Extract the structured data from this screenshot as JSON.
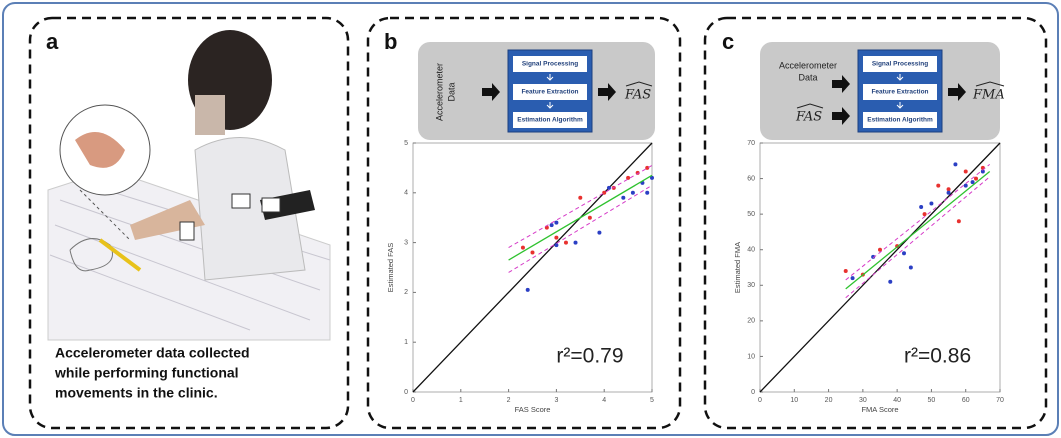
{
  "panels": [
    {
      "label": "a",
      "caption": [
        "Accelerometer data collected",
        "while performing functional",
        "movements in the clinic."
      ]
    },
    {
      "label": "b",
      "diagram": {
        "input": [
          "Accelerometer",
          "Data"
        ],
        "steps": [
          "Signal Processing",
          "Feature Extraction",
          "Estimation Algorithm"
        ],
        "output": "FAS"
      }
    },
    {
      "label": "c",
      "diagram": {
        "input": [
          "Accelerometer",
          "Data"
        ],
        "input2": "FAS",
        "steps": [
          "Signal Processing",
          "Feature Extraction",
          "Estimation Algorithm"
        ],
        "output": "FMA"
      }
    }
  ],
  "chart_data": [
    {
      "type": "scatter",
      "x_label": "FAS Score",
      "y_label": "Estimated FAS",
      "annotation": "r²=0.79",
      "xlim": [
        0,
        5
      ],
      "ylim": [
        0,
        5
      ],
      "xticks": [
        0,
        1,
        2,
        3,
        4,
        5
      ],
      "yticks": [
        0,
        1,
        2,
        3,
        4,
        5
      ],
      "series": [
        {
          "style": "line",
          "color": "#111111",
          "x": [
            0,
            5
          ],
          "values": [
            0,
            5
          ]
        },
        {
          "style": "points",
          "color": "#e8312f",
          "x": [
            2.3,
            2.5,
            2.8,
            3,
            3.2,
            3.5,
            3.7,
            4,
            4.2,
            4.5,
            4.7,
            4.9
          ],
          "values": [
            2.9,
            2.8,
            3.3,
            3.1,
            3.0,
            3.9,
            3.5,
            4.0,
            4.1,
            4.3,
            4.4,
            4.5
          ]
        },
        {
          "style": "points",
          "color": "#2b3fc4",
          "x": [
            2.4,
            2.9,
            3,
            3,
            3.4,
            3.9,
            4.1,
            4.4,
            4.6,
            4.8,
            4.9,
            5
          ],
          "values": [
            2.05,
            3.35,
            3.4,
            2.95,
            3.0,
            3.2,
            4.1,
            3.9,
            4.0,
            4.2,
            4.0,
            4.3
          ]
        },
        {
          "style": "dashed",
          "color": "#d63cc8",
          "x": [
            2,
            5
          ],
          "values": [
            2.9,
            4.55
          ]
        },
        {
          "style": "dashed",
          "color": "#d63cc8",
          "x": [
            2,
            5
          ],
          "values": [
            2.4,
            4.15
          ]
        },
        {
          "style": "line",
          "color": "#2fc22f",
          "x": [
            2,
            5
          ],
          "values": [
            2.65,
            4.35
          ]
        }
      ]
    },
    {
      "type": "scatter",
      "x_label": "FMA Score",
      "y_label": "Estimated FMA",
      "annotation": "r²=0.86",
      "xlim": [
        0,
        70
      ],
      "ylim": [
        0,
        70
      ],
      "xticks": [
        0,
        10,
        20,
        30,
        40,
        50,
        60,
        70
      ],
      "yticks": [
        0,
        10,
        20,
        30,
        40,
        50,
        60,
        70
      ],
      "series": [
        {
          "style": "line",
          "color": "#111111",
          "x": [
            0,
            70
          ],
          "values": [
            0,
            70
          ]
        },
        {
          "style": "points",
          "color": "#e8312f",
          "x": [
            25,
            30,
            35,
            40,
            48,
            52,
            55,
            58,
            60,
            63,
            65
          ],
          "values": [
            34,
            33,
            40,
            41,
            50,
            58,
            57,
            48,
            62,
            60,
            63
          ]
        },
        {
          "style": "points",
          "color": "#2b3fc4",
          "x": [
            27,
            33,
            38,
            42,
            44,
            47,
            50,
            55,
            57,
            60,
            62,
            65
          ],
          "values": [
            32,
            38,
            31,
            39,
            35,
            52,
            53,
            56,
            64,
            58,
            59,
            62
          ]
        },
        {
          "style": "dashed",
          "color": "#d63cc8",
          "x": [
            25,
            67
          ],
          "values": [
            31.5,
            64
          ]
        },
        {
          "style": "dashed",
          "color": "#d63cc8",
          "x": [
            25,
            67
          ],
          "values": [
            26.5,
            60.5
          ]
        },
        {
          "style": "line",
          "color": "#2fc22f",
          "x": [
            25,
            67
          ],
          "values": [
            29,
            62
          ]
        }
      ]
    }
  ]
}
